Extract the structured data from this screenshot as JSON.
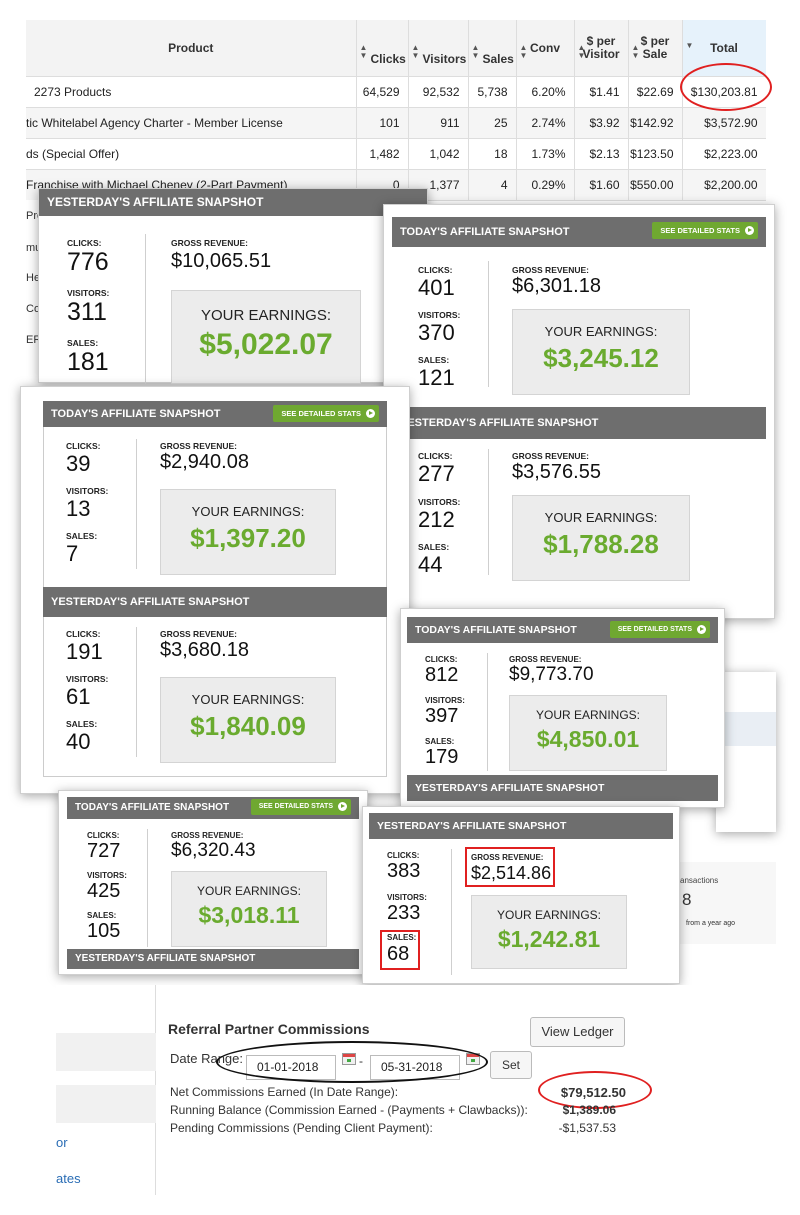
{
  "product_table": {
    "headers": [
      "Product",
      "Clicks",
      "Visitors",
      "Sales",
      "Conv",
      "$ per Visitor",
      "$ per Sale",
      "Total"
    ],
    "rows": [
      [
        "2273 Products",
        "64,529",
        "92,532",
        "5,738",
        "6.20%",
        "$1.41",
        "$22.69",
        "$130,203.81"
      ],
      [
        "tic Whitelabel Agency Charter - Member License",
        "101",
        "911",
        "25",
        "2.74%",
        "$3.92",
        "$142.92",
        "$3,572.90"
      ],
      [
        "ds (Special Offer)",
        "1,482",
        "1,042",
        "18",
        "1.73%",
        "$2.13",
        "$123.50",
        "$2,223.00"
      ],
      [
        "Franchise with Michael Cheney (2-Part Payment)",
        "0",
        "1,377",
        "4",
        "0.29%",
        "$1.60",
        "$550.00",
        "$2,200.00"
      ]
    ],
    "side_fragments": [
      "Pro",
      "mu",
      "He",
      "Co",
      "ER"
    ]
  },
  "labels": {
    "clicks": "CLICKS:",
    "visitors": "VISITORS:",
    "sales": "SALES:",
    "gross": "GROSS REVENUE:",
    "earnings": "YOUR EARNINGS:",
    "see_stats": "SEE DETAILED STATS"
  },
  "snapshots": {
    "s1": {
      "title": "YESTERDAY'S AFFILIATE SNAPSHOT",
      "clicks": "776",
      "visitors": "311",
      "sales": "181",
      "gross": "$10,065.51",
      "earnings": "$5,022.07"
    },
    "s2_today": {
      "title": "TODAY'S AFFILIATE SNAPSHOT",
      "clicks": "401",
      "visitors": "370",
      "sales": "121",
      "gross": "$6,301.18",
      "earnings": "$3,245.12"
    },
    "s2_yest": {
      "title": "YESTERDAY'S AFFILIATE SNAPSHOT",
      "clicks": "277",
      "visitors": "212",
      "sales": "44",
      "gross": "$3,576.55",
      "earnings": "$1,788.28"
    },
    "s3_today": {
      "title": "TODAY'S AFFILIATE SNAPSHOT",
      "clicks": "39",
      "visitors": "13",
      "sales": "7",
      "gross": "$2,940.08",
      "earnings": "$1,397.20"
    },
    "s3_yest": {
      "title": "YESTERDAY'S AFFILIATE SNAPSHOT",
      "clicks": "191",
      "visitors": "61",
      "sales": "40",
      "gross": "$3,680.18",
      "earnings": "$1,840.09"
    },
    "s4_today": {
      "title": "TODAY'S AFFILIATE SNAPSHOT",
      "clicks": "812",
      "visitors": "397",
      "sales": "179",
      "gross": "$9,773.70",
      "earnings": "$4,850.01"
    },
    "s4_yest_title": "YESTERDAY'S AFFILIATE SNAPSHOT",
    "s5_today": {
      "title": "TODAY'S AFFILIATE SNAPSHOT",
      "clicks": "727",
      "visitors": "425",
      "sales": "105",
      "gross": "$6,320.43",
      "earnings": "$3,018.11"
    },
    "s5_yest_title": "YESTERDAY'S AFFILIATE SNAPSHOT",
    "s6": {
      "title": "YESTERDAY'S AFFILIATE SNAPSHOT",
      "clicks": "383",
      "visitors": "233",
      "sales": "68",
      "gross": "$2,514.86",
      "earnings": "$1,242.81"
    }
  },
  "bg_fragment": {
    "transactions": "ansactions",
    "count": "8",
    "ago": "from a year ago"
  },
  "referral": {
    "title": "Referral Partner Commissions",
    "view_ledger": "View Ledger",
    "date_range_label": "Date Range:",
    "date_from": "01-01-2018",
    "date_to": "05-31-2018",
    "date_sep": "-",
    "set_button": "Set",
    "net_label": "Net Commissions Earned (In Date Range):",
    "net_value": "$79,512.50",
    "running_label": "Running Balance (Commission Earned - (Payments + Clawbacks)):",
    "running_value": "$1,389.06",
    "pending_label": "Pending Commissions (Pending Client Payment):",
    "pending_value": "-$1,537.53",
    "left_links": [
      "or",
      "ates"
    ]
  }
}
